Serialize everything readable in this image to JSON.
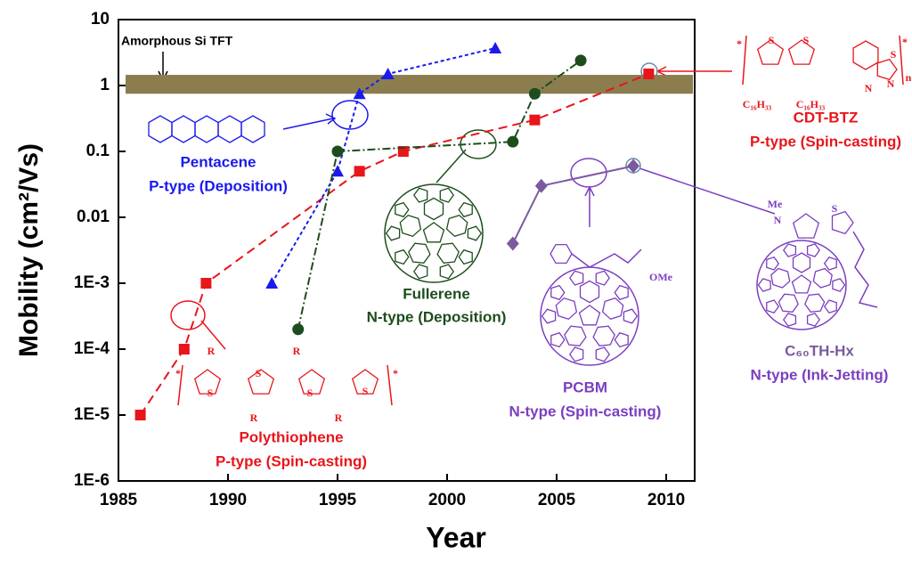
{
  "chart_data": {
    "type": "line",
    "x_label": "Year",
    "y_label": "Mobility (cm²/Vs)",
    "xlim": [
      1985,
      2011.3
    ],
    "xticks": [
      1985,
      1990,
      1995,
      2000,
      2005,
      2010
    ],
    "ylim": [
      1e-06,
      10
    ],
    "log_y": true,
    "yticks": [
      {
        "value": 1e-06,
        "label": "1E-6"
      },
      {
        "value": 1e-05,
        "label": "1E-5"
      },
      {
        "value": 0.0001,
        "label": "1E-4"
      },
      {
        "value": 0.001,
        "label": "1E-3"
      },
      0.01,
      0.1,
      1,
      10
    ],
    "band": {
      "label": "Amorphous Si TFT",
      "range": [
        0.75,
        1.45
      ],
      "color": "#8c7d4f"
    },
    "series": [
      {
        "name": "Polythiophene",
        "color": "#e8151b",
        "marker": "square",
        "dash": "10,6",
        "x": [
          1986,
          1988,
          1989,
          1996,
          1998,
          2004,
          2009.2
        ],
        "values": [
          1e-05,
          0.0001,
          0.001,
          0.05,
          0.1,
          0.3,
          1.5
        ]
      },
      {
        "name": "Pentacene",
        "color": "#1a1aee",
        "marker": "triangle",
        "dash": "4,3",
        "x": [
          1992,
          1995,
          1996,
          1997.3,
          2002.2
        ],
        "values": [
          0.001,
          0.05,
          0.75,
          1.5,
          3.7
        ]
      },
      {
        "name": "Fullerene",
        "color": "#1d4d1d",
        "marker": "circle",
        "dash": "9,3,2,3",
        "x": [
          1993.2,
          1995,
          2003,
          2004,
          2006.1
        ],
        "values": [
          0.0002,
          0.1,
          0.14,
          0.75,
          2.4
        ]
      },
      {
        "color": "#7b5aa0",
        "marker": "diamond",
        "dash": "none",
        "x": [
          2003,
          2004.3,
          2008.5
        ],
        "values": [
          0.004,
          0.03,
          0.06
        ]
      }
    ],
    "annotations": [
      "P-type (Deposition)",
      "N-type (Deposition)",
      "PCBM",
      "N-type (Spin-casting)",
      "C₆₀TH-Hx",
      "N-type (Ink-Jetting)",
      "P-type (Spin-casting)",
      "CDT-BTZ",
      "P-type (Spin-casting)"
    ],
    "structure_texts": [
      "R",
      "R",
      "R",
      "R",
      "S",
      "S",
      "S",
      "S",
      "*",
      "*",
      "S",
      "S",
      "C₁₆H₃₃",
      "C₁₆H₃₃",
      "N",
      "S",
      "N",
      "n",
      "*",
      "*",
      "OMe",
      "Me",
      "N",
      "S"
    ]
  }
}
